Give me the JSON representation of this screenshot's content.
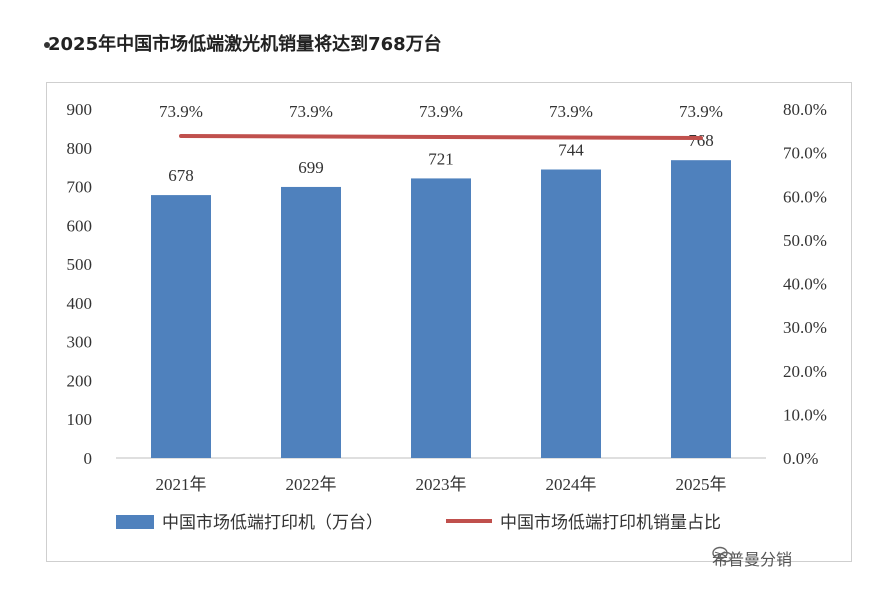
{
  "heading": "2025年中国市场低端激光机销量将达到768万台",
  "watermark": "希普曼分销",
  "colors": {
    "bar": "#4f81bd",
    "line": "#c0504d"
  },
  "chart_data": {
    "type": "bar",
    "categories": [
      "2021年",
      "2022年",
      "2023年",
      "2024年",
      "2025年"
    ],
    "series": [
      {
        "name": "中国市场低端打印机（万台）",
        "kind": "bar",
        "axis": "left",
        "values": [
          678,
          699,
          721,
          744,
          768
        ],
        "labels": [
          "678",
          "699",
          "721",
          "744",
          "768"
        ]
      },
      {
        "name": "中国市场低端打印机销量占比",
        "kind": "line",
        "axis": "right",
        "values": [
          73.9,
          73.9,
          73.9,
          73.9,
          73.9
        ],
        "labels": [
          "73.9%",
          "73.9%",
          "73.9%",
          "73.9%",
          "73.9%"
        ]
      }
    ],
    "y_left": {
      "min": 0,
      "max": 900,
      "ticks": [
        "0",
        "100",
        "200",
        "300",
        "400",
        "500",
        "600",
        "700",
        "800",
        "900"
      ]
    },
    "y_right": {
      "min": 0,
      "max": 80,
      "ticks": [
        "0.0%",
        "10.0%",
        "20.0%",
        "30.0%",
        "40.0%",
        "50.0%",
        "60.0%",
        "70.0%",
        "80.0%"
      ]
    },
    "legend": [
      "中国市场低端打印机（万台）",
      "中国市场低端打印机销量占比"
    ],
    "legend_position": "bottom"
  }
}
